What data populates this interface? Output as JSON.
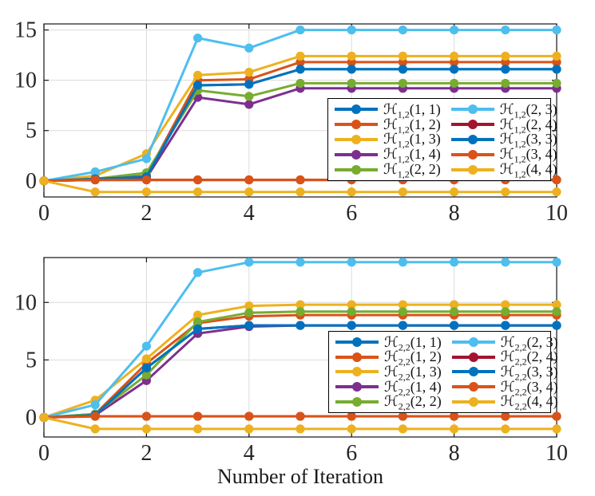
{
  "figure": {
    "xlabel": "Number of Iteration"
  },
  "palette": {
    "blue": "#0072BD",
    "orange": "#D95319",
    "yellow": "#EDB120",
    "purple": "#7E2F8E",
    "green": "#77AC30",
    "lightblue": "#4DBEEE",
    "maroon": "#A2142F"
  },
  "chart_data": [
    {
      "type": "line",
      "title": "",
      "xlabel": "",
      "ylabel": "",
      "x": [
        0,
        1,
        2,
        3,
        4,
        5,
        6,
        7,
        8,
        9,
        10
      ],
      "xlim": [
        0,
        10
      ],
      "ylim": [
        -1.6,
        15.6
      ],
      "xticks": [
        "0",
        "2",
        "4",
        "6",
        "8",
        "10"
      ],
      "xtick_values": [
        0,
        2,
        4,
        6,
        8,
        10
      ],
      "yticks": [
        "0",
        "5",
        "10",
        "15"
      ],
      "ytick_values": [
        0,
        5,
        10,
        15
      ],
      "grid": true,
      "legend_position": "inside-lower-right",
      "legend_prefix": "ℋ",
      "legend_sub": "1,2",
      "series": [
        {
          "args": "(1, 1)",
          "color": "#0072BD",
          "values": [
            0,
            0.2,
            0.4,
            9.5,
            9.6,
            11.1,
            11.1,
            11.1,
            11.1,
            11.1,
            11.1
          ]
        },
        {
          "args": "(1, 2)",
          "color": "#D95319",
          "values": [
            0,
            0.2,
            0.5,
            10.0,
            10.1,
            11.8,
            11.8,
            11.8,
            11.8,
            11.8,
            11.8
          ]
        },
        {
          "args": "(1, 3)",
          "color": "#EDB120",
          "values": [
            0,
            0.5,
            2.7,
            10.5,
            10.8,
            12.4,
            12.4,
            12.4,
            12.4,
            12.4,
            12.4
          ]
        },
        {
          "args": "(1, 4)",
          "color": "#7E2F8E",
          "values": [
            0,
            0.1,
            0.3,
            8.3,
            7.6,
            9.2,
            9.2,
            9.2,
            9.2,
            9.2,
            9.2
          ]
        },
        {
          "args": "(2, 2)",
          "color": "#77AC30",
          "values": [
            0,
            0.2,
            0.8,
            9.0,
            8.4,
            9.7,
            9.7,
            9.7,
            9.7,
            9.7,
            9.7
          ]
        },
        {
          "args": "(2, 3)",
          "color": "#4DBEEE",
          "values": [
            0,
            0.9,
            2.2,
            14.2,
            13.2,
            15.0,
            15.0,
            15.0,
            15.0,
            15.0,
            15.0
          ]
        },
        {
          "args": "(2, 4)",
          "color": "#A2142F",
          "values": [
            0,
            0.1,
            0.1,
            0.1,
            0.1,
            0.1,
            0.1,
            0.1,
            0.1,
            0.1,
            0.1
          ]
        },
        {
          "args": "(3, 3)",
          "color": "#0072BD",
          "values": [
            0,
            0.2,
            0.4,
            9.5,
            9.6,
            11.1,
            11.1,
            11.1,
            11.1,
            11.1,
            11.1
          ]
        },
        {
          "args": "(3, 4)",
          "color": "#D95319",
          "values": [
            0,
            0.1,
            0.1,
            0.1,
            0.1,
            0.1,
            0.1,
            0.1,
            0.1,
            0.1,
            0.1
          ]
        },
        {
          "args": "(4, 4)",
          "color": "#EDB120",
          "values": [
            0,
            -1.1,
            -1.1,
            -1.1,
            -1.1,
            -1.1,
            -1.1,
            -1.1,
            -1.1,
            -1.1,
            -1.1
          ]
        }
      ]
    },
    {
      "type": "line",
      "title": "",
      "xlabel": "Number of Iteration",
      "ylabel": "",
      "x": [
        0,
        1,
        2,
        3,
        4,
        5,
        6,
        7,
        8,
        9,
        10
      ],
      "xlim": [
        0,
        10
      ],
      "ylim": [
        -1.7,
        13.9
      ],
      "xticks": [
        "0",
        "2",
        "4",
        "6",
        "8",
        "10"
      ],
      "xtick_values": [
        0,
        2,
        4,
        6,
        8,
        10
      ],
      "yticks": [
        "0",
        "5",
        "10"
      ],
      "ytick_values": [
        0,
        5,
        10
      ],
      "grid": true,
      "legend_position": "inside-lower-right",
      "legend_prefix": "ℋ",
      "legend_sub": "2,2",
      "series": [
        {
          "args": "(1, 1)",
          "color": "#0072BD",
          "values": [
            0,
            0.2,
            4.3,
            7.7,
            8.0,
            8.0,
            8.0,
            8.0,
            8.0,
            8.0,
            8.0
          ]
        },
        {
          "args": "(1, 2)",
          "color": "#D95319",
          "values": [
            0,
            0.3,
            4.7,
            8.2,
            8.8,
            8.9,
            8.9,
            8.9,
            8.9,
            8.9,
            8.9
          ]
        },
        {
          "args": "(1, 3)",
          "color": "#EDB120",
          "values": [
            0,
            1.5,
            5.1,
            8.9,
            9.7,
            9.8,
            9.8,
            9.8,
            9.8,
            9.8,
            9.8
          ]
        },
        {
          "args": "(1, 4)",
          "color": "#7E2F8E",
          "values": [
            0,
            0.2,
            3.2,
            7.3,
            7.9,
            8.0,
            8.0,
            8.0,
            8.0,
            8.0,
            8.0
          ]
        },
        {
          "args": "(2, 2)",
          "color": "#77AC30",
          "values": [
            0,
            0.3,
            3.7,
            8.3,
            9.1,
            9.2,
            9.2,
            9.2,
            9.2,
            9.2,
            9.2
          ]
        },
        {
          "args": "(2, 3)",
          "color": "#4DBEEE",
          "values": [
            0,
            1.1,
            6.2,
            12.6,
            13.5,
            13.5,
            13.5,
            13.5,
            13.5,
            13.5,
            13.5
          ]
        },
        {
          "args": "(2, 4)",
          "color": "#A2142F",
          "values": [
            0,
            0.1,
            0.1,
            0.1,
            0.1,
            0.1,
            0.1,
            0.1,
            0.1,
            0.1,
            0.1
          ]
        },
        {
          "args": "(3, 3)",
          "color": "#0072BD",
          "values": [
            0,
            0.2,
            4.3,
            7.7,
            8.0,
            8.0,
            8.0,
            8.0,
            8.0,
            8.0,
            8.0
          ]
        },
        {
          "args": "(3, 4)",
          "color": "#D95319",
          "values": [
            0,
            0.1,
            0.1,
            0.1,
            0.1,
            0.1,
            0.1,
            0.1,
            0.1,
            0.1,
            0.1
          ]
        },
        {
          "args": "(4, 4)",
          "color": "#EDB120",
          "values": [
            0,
            -1.0,
            -1.0,
            -1.0,
            -1.0,
            -1.0,
            -1.0,
            -1.0,
            -1.0,
            -1.0,
            -1.0
          ]
        }
      ]
    }
  ]
}
